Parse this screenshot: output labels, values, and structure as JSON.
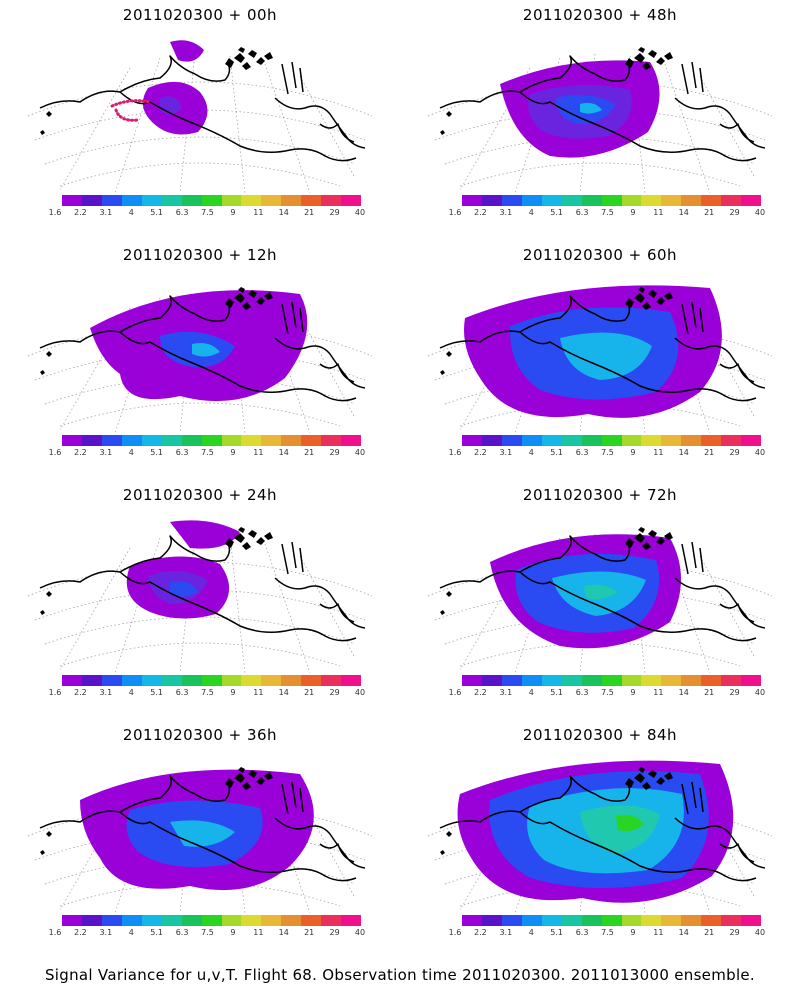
{
  "panels": [
    {
      "title": "2011020300 + 00h",
      "intensity": 0
    },
    {
      "title": "2011020300 + 48h",
      "intensity": 4
    },
    {
      "title": "2011020300 + 12h",
      "intensity": 1
    },
    {
      "title": "2011020300 + 60h",
      "intensity": 5
    },
    {
      "title": "2011020300 + 24h",
      "intensity": 2
    },
    {
      "title": "2011020300 + 72h",
      "intensity": 6
    },
    {
      "title": "2011020300 + 36h",
      "intensity": 3
    },
    {
      "title": "2011020300 + 84h",
      "intensity": 7
    }
  ],
  "colorbar": {
    "colors": [
      "#9a00d8",
      "#5a14c8",
      "#2a4af2",
      "#0f8ef5",
      "#13b8e6",
      "#17c7a3",
      "#17c35a",
      "#29d423",
      "#a6d82a",
      "#dcd930",
      "#e8b735",
      "#e39032",
      "#ea6029",
      "#ea2f5a",
      "#f0108f"
    ],
    "labels": [
      "1.6",
      "2.2",
      "3.1",
      "4",
      "5.1",
      "6.3",
      "7.5",
      "9",
      "11",
      "14",
      "21",
      "29",
      "40"
    ]
  },
  "caption": "Signal Variance for u,v,T. Flight 68. Observation time 2011020300. 2011013000 ensemble.",
  "map_colors": {
    "purple": "#9a00d8",
    "violet": "#6a24e0",
    "blue": "#2a4af2",
    "cyan": "#16b4ea",
    "teal": "#20c8b0",
    "green": "#29d423",
    "flight_track": "#e0186e"
  }
}
